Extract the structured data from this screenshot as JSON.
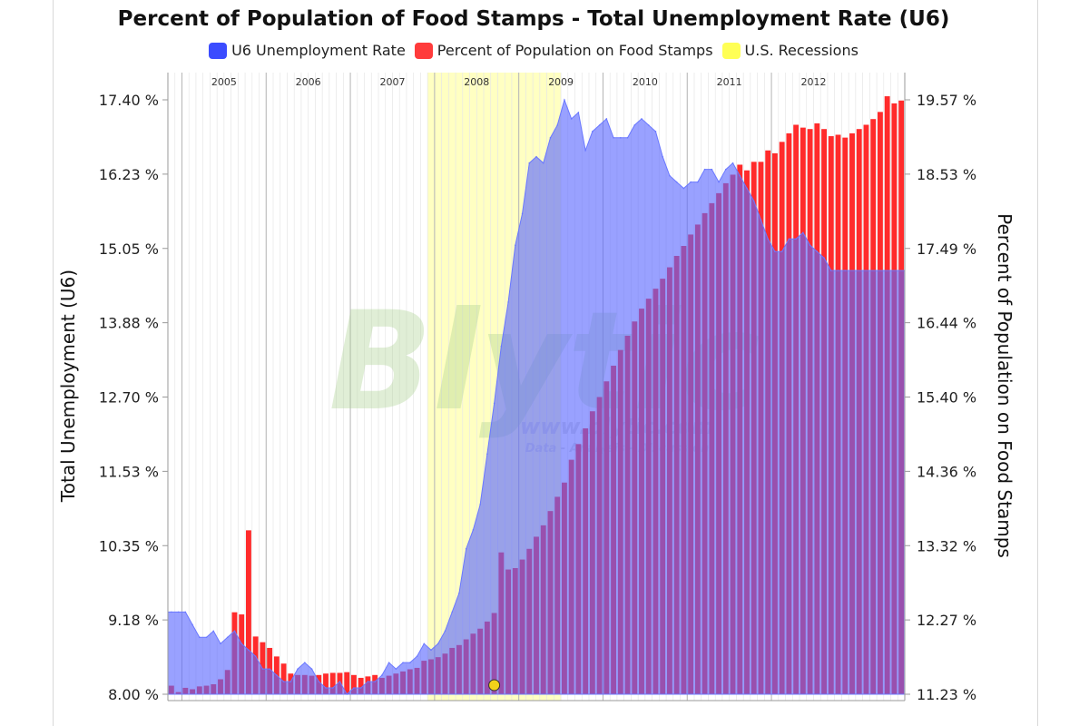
{
  "chart_data": {
    "type": "bar+area",
    "title": "Percent of Population of Food Stamps - Total Unemployment Rate (U6)",
    "legend": [
      {
        "label": "U6 Unemployment Rate",
        "color": "#3b4cff"
      },
      {
        "label": "Percent of Population on Food Stamps",
        "color": "#ff3b3b"
      },
      {
        "label": "U.S. Recessions",
        "color": "#ffff55"
      }
    ],
    "ylabel_left": "Total Unemployment (U6)",
    "ylabel_right": "Percent of Population on Food Stamps",
    "left_ticks": [
      "8.00 %",
      "9.18 %",
      "10.35 %",
      "11.53 %",
      "12.70 %",
      "13.88 %",
      "15.05 %",
      "16.23 %",
      "17.40 %"
    ],
    "right_ticks": [
      "11.23 %",
      "12.27 %",
      "13.32 %",
      "14.36 %",
      "15.40 %",
      "16.44 %",
      "17.49 %",
      "18.53 %",
      "19.57 %"
    ],
    "ylim_left": [
      8.0,
      17.4
    ],
    "ylim_right": [
      11.23,
      19.57
    ],
    "years": [
      "2005",
      "2006",
      "2007",
      "2008",
      "2009",
      "2010",
      "2011",
      "2012"
    ],
    "x_start": "2004-11",
    "recession": {
      "start": "2007-12",
      "end": "2009-06"
    },
    "series": [
      {
        "name": "U6 Unemployment Rate",
        "axis": "left",
        "values": [
          9.3,
          9.3,
          9.3,
          9.1,
          8.9,
          8.9,
          9.0,
          8.8,
          8.9,
          9.0,
          8.8,
          8.7,
          8.6,
          8.4,
          8.4,
          8.3,
          8.2,
          8.2,
          8.4,
          8.5,
          8.4,
          8.2,
          8.1,
          8.1,
          8.2,
          8.0,
          8.1,
          8.1,
          8.2,
          8.2,
          8.3,
          8.5,
          8.4,
          8.5,
          8.5,
          8.6,
          8.8,
          8.7,
          8.8,
          9.0,
          9.3,
          9.6,
          10.3,
          10.6,
          11.0,
          11.8,
          12.6,
          13.5,
          14.2,
          15.1,
          15.6,
          16.4,
          16.5,
          16.4,
          16.8,
          17.0,
          17.4,
          17.1,
          17.2,
          16.6,
          16.9,
          17.0,
          17.1,
          16.8,
          16.8,
          16.8,
          17.0,
          17.1,
          17.0,
          16.9,
          16.5,
          16.2,
          16.1,
          16.0,
          16.1,
          16.1,
          16.3,
          16.3,
          16.1,
          16.3,
          16.4,
          16.2,
          16.0,
          15.8,
          15.5,
          15.2,
          15.0,
          15.0,
          15.2,
          15.2,
          15.3,
          15.1,
          15.0,
          14.9,
          14.7,
          14.7,
          14.7
        ]
      },
      {
        "name": "Percent of Population on Food Stamps",
        "axis": "right",
        "values": [
          11.35,
          11.26,
          11.32,
          11.3,
          11.34,
          11.35,
          11.37,
          11.44,
          11.57,
          12.38,
          12.35,
          13.53,
          12.04,
          11.96,
          11.88,
          11.76,
          11.66,
          11.52,
          11.5,
          11.5,
          11.49,
          11.5,
          11.52,
          11.53,
          11.53,
          11.54,
          11.5,
          11.46,
          11.48,
          11.5,
          11.46,
          11.49,
          11.52,
          11.55,
          11.58,
          11.6,
          11.7,
          11.72,
          11.75,
          11.8,
          11.88,
          11.92,
          12.0,
          12.08,
          12.15,
          12.25,
          12.37,
          13.22,
          12.98,
          13.0,
          13.12,
          13.27,
          13.44,
          13.6,
          13.8,
          14.0,
          14.2,
          14.52,
          14.74,
          14.96,
          15.2,
          15.4,
          15.62,
          15.84,
          16.06,
          16.26,
          16.46,
          16.64,
          16.78,
          16.92,
          17.06,
          17.22,
          17.38,
          17.52,
          17.68,
          17.82,
          17.98,
          18.12,
          18.26,
          18.4,
          18.52,
          18.66,
          18.58,
          18.7,
          18.7,
          18.86,
          18.82,
          18.98,
          19.1,
          19.22,
          19.18,
          19.16,
          19.24,
          19.16,
          19.06,
          19.08,
          19.04,
          19.1,
          19.16,
          19.22,
          19.3,
          19.4,
          19.62,
          19.52,
          19.56
        ]
      }
    ],
    "watermark": "Blytic",
    "watermark_url": "www.blytic.com",
    "watermark_tagline": "Data - Analysis - Discussion"
  }
}
